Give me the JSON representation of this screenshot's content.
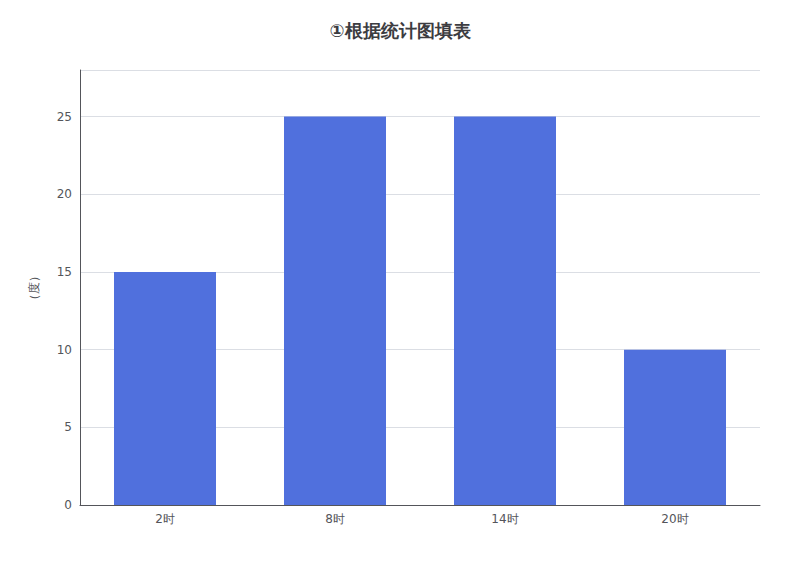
{
  "chart_data": {
    "type": "bar",
    "title": "①根据统计图填表",
    "ylabel": "（度）",
    "categories": [
      "2时",
      "8时",
      "14时",
      "20时"
    ],
    "values": [
      15,
      25,
      25,
      10
    ],
    "ylim": [
      0,
      28
    ],
    "yticks": [
      0,
      5,
      10,
      15,
      20,
      25
    ],
    "grid": true
  }
}
